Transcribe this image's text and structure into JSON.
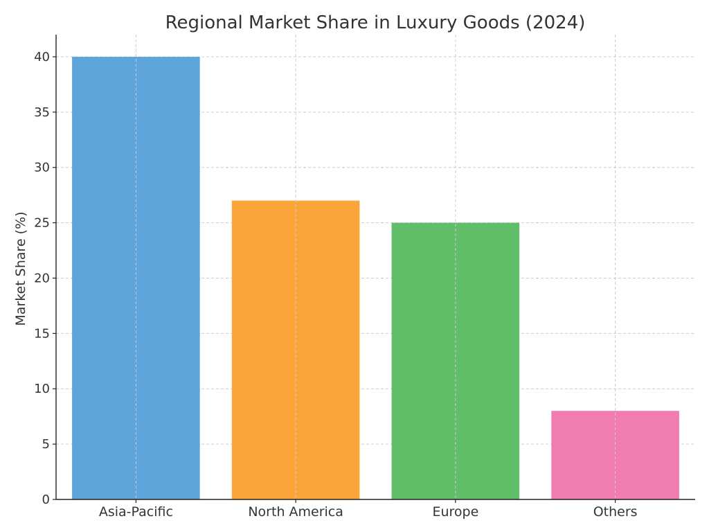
{
  "chart_data": {
    "type": "bar",
    "title": "Regional Market Share in Luxury Goods (2024)",
    "xlabel": "",
    "ylabel": "Market Share (%)",
    "categories": [
      "Asia-Pacific",
      "North America",
      "Europe",
      "Others"
    ],
    "values": [
      40,
      27,
      25,
      8
    ],
    "colors": [
      "#5DA5DA",
      "#FAA43A",
      "#60BD68",
      "#F17CB0"
    ],
    "ylim": [
      0,
      42
    ],
    "yticks": [
      0,
      5,
      10,
      15,
      20,
      25,
      30,
      35,
      40
    ],
    "grid": true,
    "legend": "none"
  }
}
